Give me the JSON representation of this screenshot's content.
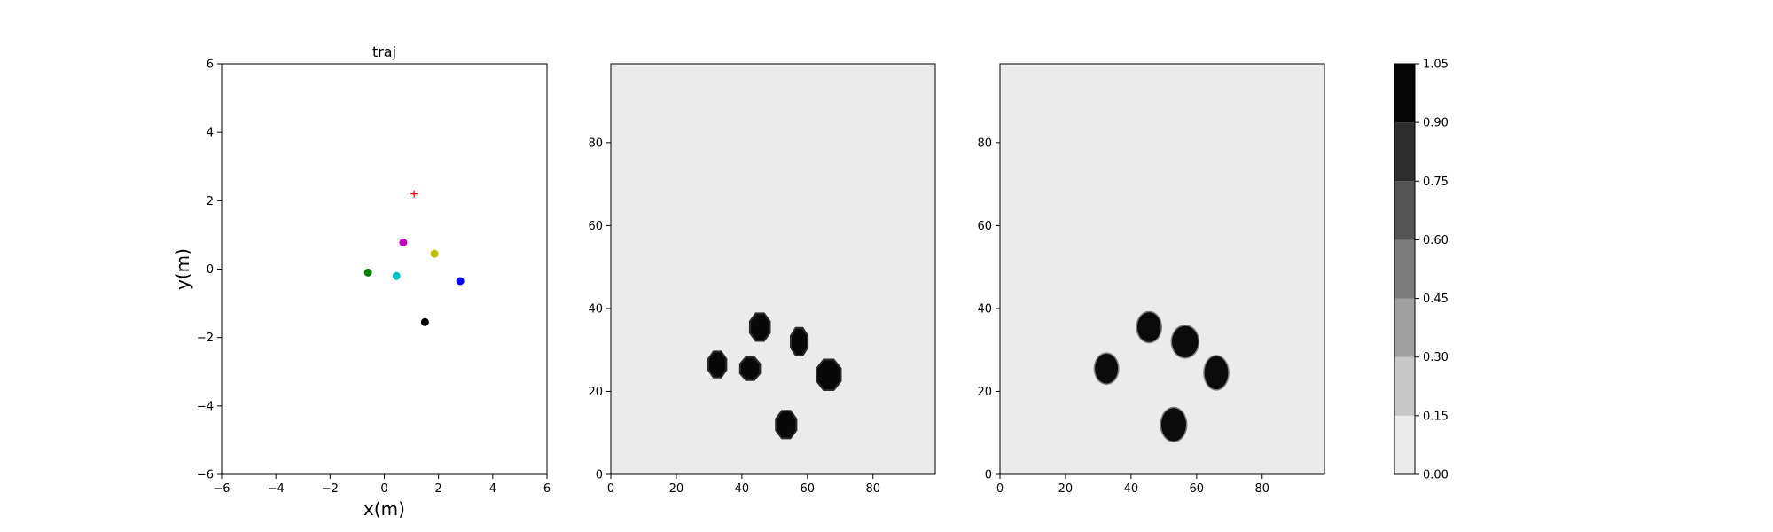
{
  "chart_data": [
    {
      "type": "scatter",
      "title": "traj",
      "xlabel": "x(m)",
      "ylabel": "y(m)",
      "xlim": [
        -6,
        6
      ],
      "ylim": [
        -6,
        6
      ],
      "xticks": [
        "−6",
        "−4",
        "−2",
        "0",
        "2",
        "4",
        "6"
      ],
      "yticks": [
        "−6",
        "−4",
        "−2",
        "0",
        "2",
        "4",
        "6"
      ],
      "grid": false,
      "points": [
        {
          "x": 0.7,
          "y": 0.78,
          "color": "#bf00bf",
          "marker": "circle"
        },
        {
          "x": 1.85,
          "y": 0.45,
          "color": "#bfbf00",
          "marker": "circle"
        },
        {
          "x": -0.6,
          "y": -0.1,
          "color": "#008000",
          "marker": "circle"
        },
        {
          "x": 0.45,
          "y": -0.2,
          "color": "#00bfbf",
          "marker": "circle"
        },
        {
          "x": 2.8,
          "y": -0.35,
          "color": "#0000ff",
          "marker": "circle"
        },
        {
          "x": 1.5,
          "y": -1.55,
          "color": "#000000",
          "marker": "circle"
        },
        {
          "x": 1.1,
          "y": 2.2,
          "color": "#ff0000",
          "marker": "plus"
        }
      ]
    },
    {
      "type": "heatmap",
      "title": "",
      "xlim": [
        0,
        99
      ],
      "ylim": [
        0,
        99
      ],
      "xticks": [
        "0",
        "20",
        "40",
        "60",
        "80"
      ],
      "yticks": [
        "0",
        "20",
        "40",
        "60",
        "80"
      ],
      "background_value": 0.05,
      "blob_shape": "octagon",
      "blobs": [
        {
          "cx": 45.5,
          "cy": 35.5,
          "rx": 3.3,
          "ry": 3.6
        },
        {
          "cx": 57.5,
          "cy": 32.0,
          "rx": 2.8,
          "ry": 3.6
        },
        {
          "cx": 32.5,
          "cy": 26.5,
          "rx": 3.0,
          "ry": 3.4
        },
        {
          "cx": 42.5,
          "cy": 25.5,
          "rx": 3.3,
          "ry": 3.0
        },
        {
          "cx": 66.5,
          "cy": 24.0,
          "rx": 4.0,
          "ry": 4.0
        },
        {
          "cx": 53.5,
          "cy": 12.0,
          "rx": 3.4,
          "ry": 3.6
        }
      ]
    },
    {
      "type": "heatmap",
      "title": "",
      "xlim": [
        0,
        99
      ],
      "ylim": [
        0,
        99
      ],
      "xticks": [
        "0",
        "20",
        "40",
        "60",
        "80"
      ],
      "yticks": [
        "0",
        "20",
        "40",
        "60",
        "80"
      ],
      "background_value": 0.05,
      "blob_shape": "round",
      "blobs": [
        {
          "cx": 45.5,
          "cy": 35.5,
          "rx": 3.6,
          "ry": 3.6
        },
        {
          "cx": 56.5,
          "cy": 32.0,
          "rx": 4.0,
          "ry": 3.8
        },
        {
          "cx": 32.5,
          "cy": 25.5,
          "rx": 3.5,
          "ry": 3.6
        },
        {
          "cx": 66.0,
          "cy": 24.5,
          "rx": 3.6,
          "ry": 4.0
        },
        {
          "cx": 53.0,
          "cy": 12.0,
          "rx": 3.8,
          "ry": 4.0
        }
      ]
    },
    {
      "type": "colorbar",
      "ticks": [
        "0.00",
        "0.15",
        "0.30",
        "0.45",
        "0.60",
        "0.75",
        "0.90",
        "1.05"
      ],
      "levels": [
        {
          "from": 0.0,
          "to": 0.15,
          "color": "#ebebeb"
        },
        {
          "from": 0.15,
          "to": 0.3,
          "color": "#c8c8c8"
        },
        {
          "from": 0.3,
          "to": 0.45,
          "color": "#a0a0a0"
        },
        {
          "from": 0.45,
          "to": 0.6,
          "color": "#7c7c7c"
        },
        {
          "from": 0.6,
          "to": 0.75,
          "color": "#545454"
        },
        {
          "from": 0.75,
          "to": 0.9,
          "color": "#2d2d2d"
        },
        {
          "from": 0.9,
          "to": 1.05,
          "color": "#060606"
        }
      ]
    }
  ]
}
